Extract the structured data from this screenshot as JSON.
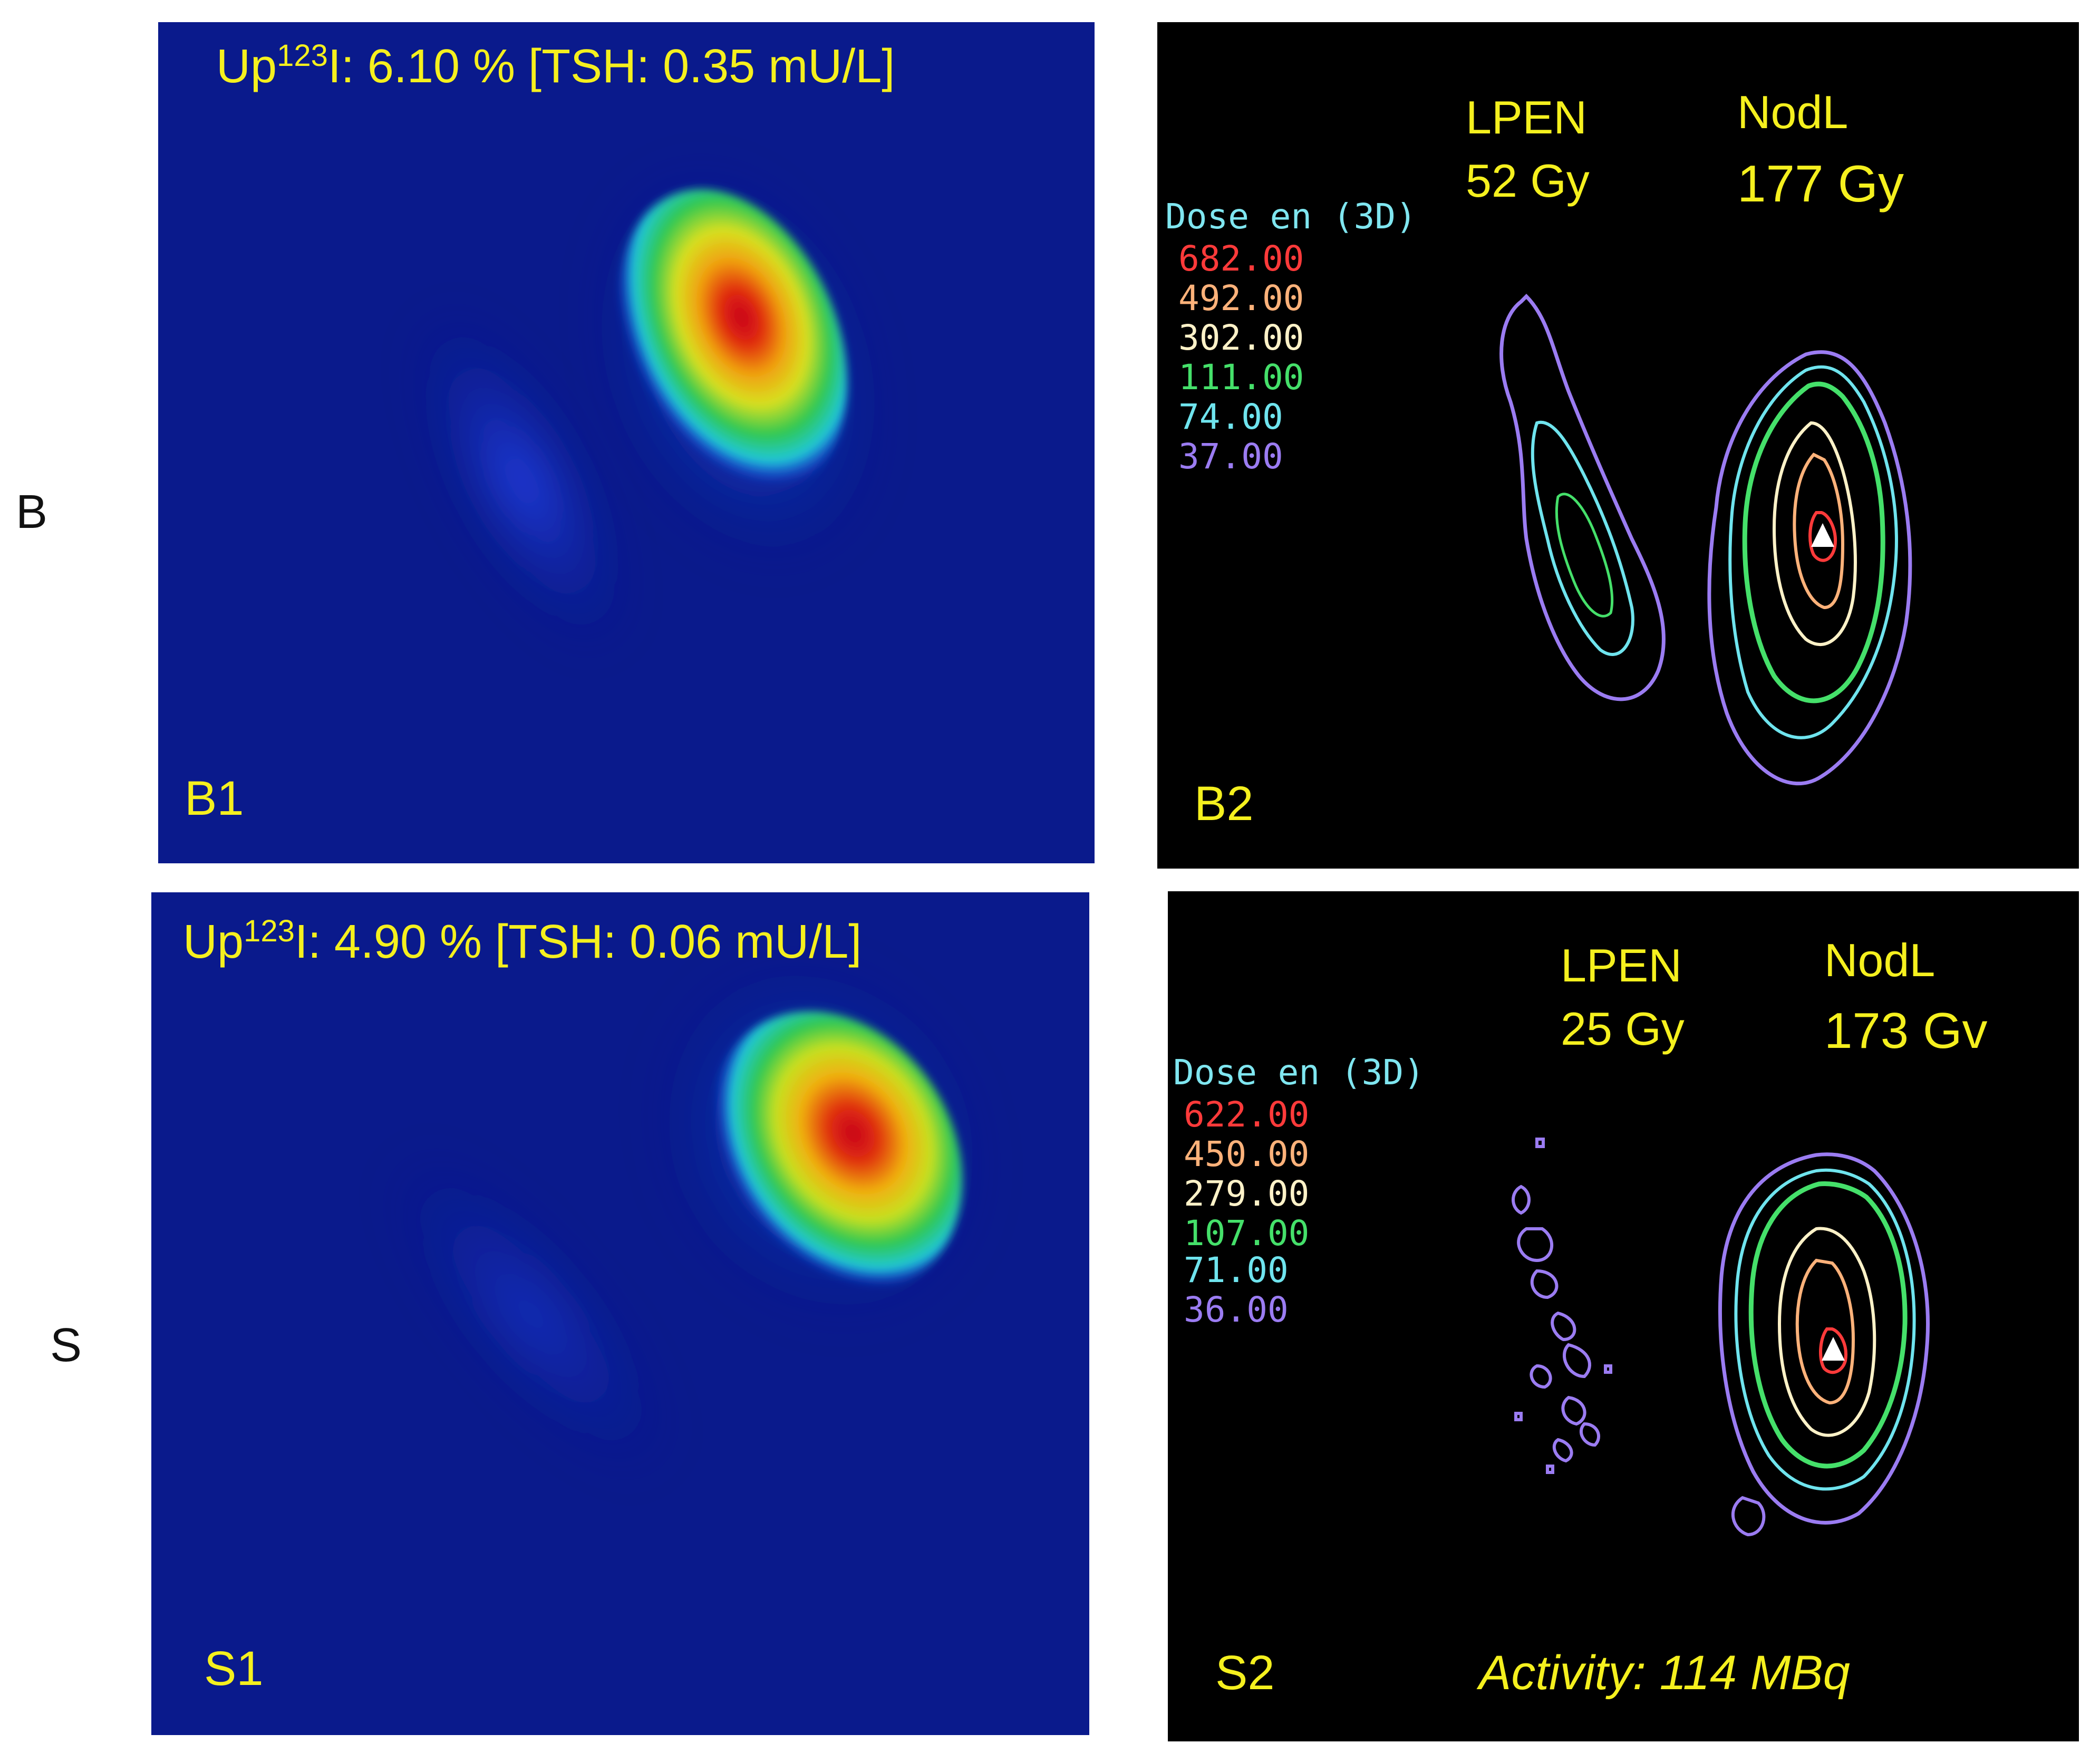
{
  "row_labels": {
    "top": "B",
    "bottom": "S"
  },
  "panels": {
    "b1": {
      "id": "B1",
      "uptake_prefix": "Up",
      "uptake_superscript": "123",
      "uptake_text": "I: 6.10 % [TSH: 0.35 mU/L]"
    },
    "b2": {
      "id": "B2",
      "dose_title": "Dose en  (3D)",
      "legend": [
        {
          "value": "682.00",
          "color": "#ff3a3a"
        },
        {
          "value": "492.00",
          "color": "#ffb27a"
        },
        {
          "value": "302.00",
          "color": "#fff2c8"
        },
        {
          "value": "111.00",
          "color": "#45e06a"
        },
        {
          "value": "74.00",
          "color": "#6fe4ee"
        },
        {
          "value": "37.00",
          "color": "#9b7cf2"
        }
      ],
      "lpen_name": "LPEN",
      "lpen_dose": "52  Gy",
      "nodl_name": "NodL",
      "nodl_dose": "177  Gy"
    },
    "s1": {
      "id": "S1",
      "uptake_prefix": "Up",
      "uptake_superscript": "123",
      "uptake_text": "I: 4.90 % [TSH: 0.06 mU/L]"
    },
    "s2": {
      "id": "S2",
      "dose_title": "Dose en  (3D)",
      "legend": [
        {
          "value": "622.00",
          "color": "#ff3a3a"
        },
        {
          "value": "450.00",
          "color": "#ffb27a"
        },
        {
          "value": "279.00",
          "color": "#fff2c8"
        },
        {
          "value": "107.00",
          "color": "#45e06a"
        },
        {
          "value": "71.00",
          "color": "#6fe4ee"
        },
        {
          "value": "36.00",
          "color": "#9b7cf2"
        }
      ],
      "lpen_name": "LPEN",
      "lpen_dose": "25 Gy",
      "nodl_name": "NodL",
      "nodl_dose": "173  Gv",
      "activity": "Activity: 114 MBq"
    }
  },
  "colors": {
    "label_yellow": "#f5f01e",
    "scint_background": "#0a1a8c",
    "dose_background": "#000000"
  }
}
